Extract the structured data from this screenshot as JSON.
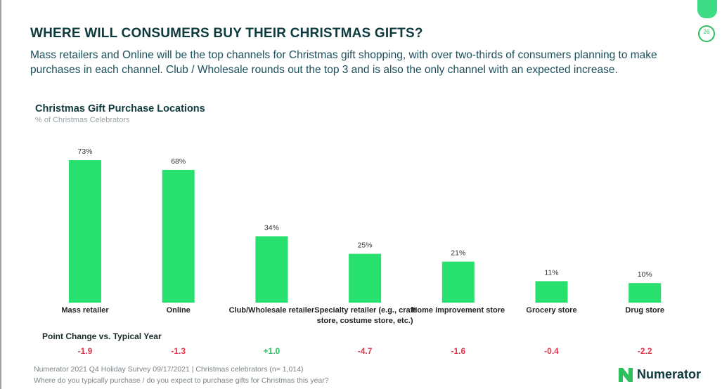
{
  "header": {
    "title": "WHERE WILL CONSUMERS BUY THEIR CHRISTMAS GIFTS?",
    "subtitle": "Mass retailers and Online will be the top channels for Christmas gift shopping, with over two-thirds of consumers planning to make purchases in each channel. Club / Wholesale rounds out the top 3 and is also the only channel with an expected increase.",
    "page_number": "26"
  },
  "chart_data": {
    "type": "bar",
    "title": "Christmas Gift Purchase Locations",
    "subtitle": "% of Christmas Celebrators",
    "categories": [
      "Mass retailer",
      "Online",
      "Club/Wholesale retailer",
      "Specialty retailer (e.g., craft store, costume store, etc.)",
      "Home improvement store",
      "Grocery store",
      "Drug store"
    ],
    "values": [
      73,
      68,
      34,
      25,
      21,
      11,
      10
    ],
    "value_labels": [
      "73%",
      "68%",
      "34%",
      "25%",
      "21%",
      "11%",
      "10%"
    ],
    "color": "#27e06e"
  },
  "point_change": {
    "label": "Point Change vs. Typical Year",
    "values": [
      -1.9,
      -1.3,
      1.0,
      -4.7,
      -1.6,
      -0.4,
      -2.2
    ],
    "value_labels": [
      "-1.9",
      "-1.3",
      "+1.0",
      "-4.7",
      "-1.6",
      "-0.4",
      "-2.2"
    ]
  },
  "footer": {
    "source": "Numerator 2021 Q4 Holiday Survey 09/17/2021 | Christmas celebrators (n= 1,014)",
    "question": "Where do you typically purchase / do you expect to purchase gifts for Christmas this year?",
    "logo": "Numerator"
  }
}
